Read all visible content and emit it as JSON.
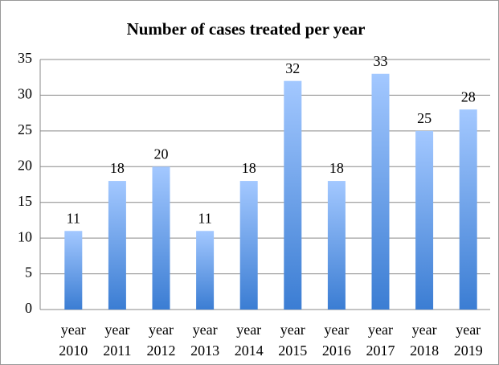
{
  "chart_data": {
    "type": "bar",
    "title": "Number of cases treated per year",
    "categories": [
      "year 2010",
      "year 2011",
      "year 2012",
      "year 2013",
      "year 2014",
      "year 2015",
      "year 2016",
      "year 2017",
      "year 2018",
      "year 2019"
    ],
    "values": [
      11,
      18,
      20,
      11,
      18,
      32,
      18,
      33,
      25,
      28
    ],
    "color": "#4f8ede",
    "ylim": [
      0,
      35
    ],
    "yticks": [
      0,
      5,
      10,
      15,
      20,
      25,
      30,
      35
    ],
    "grid": true
  }
}
